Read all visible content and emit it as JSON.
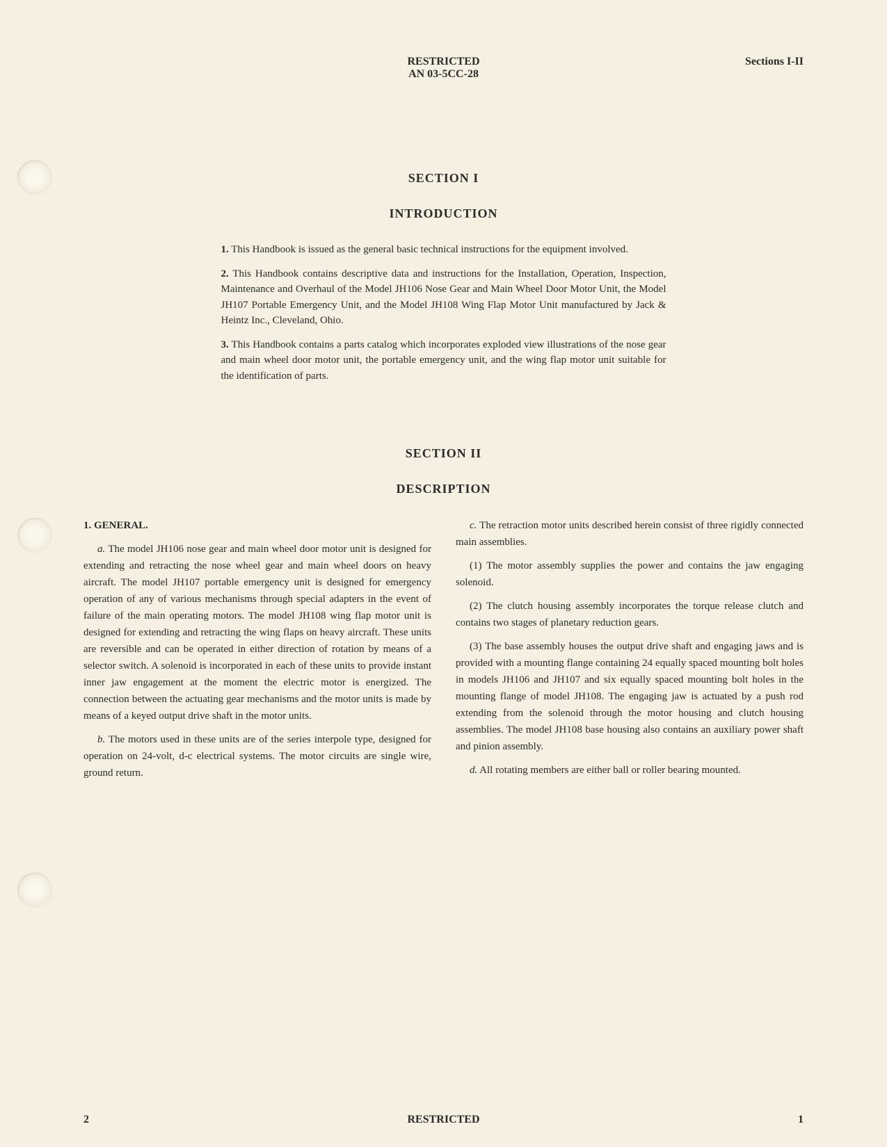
{
  "header": {
    "classification": "RESTRICTED",
    "document_code": "AN 03-5CC-28",
    "sections_label": "Sections I-II"
  },
  "section1": {
    "title": "SECTION I",
    "subtitle": "INTRODUCTION",
    "paragraphs": {
      "p1_num": "1.",
      "p1_text": " This Handbook is issued as the general basic technical instructions for the equipment involved.",
      "p2_num": "2.",
      "p2_text": " This Handbook contains descriptive data and instructions for the Installation, Operation, Inspection, Maintenance and Overhaul of the Model JH106 Nose Gear and Main Wheel Door Motor Unit, the Model JH107 Portable Emergency Unit, and the Model JH108 Wing Flap Motor Unit manufactured by Jack & Heintz Inc., Cleveland, Ohio.",
      "p3_num": "3.",
      "p3_text": " This Handbook contains a parts catalog which incorporates exploded view illustrations of the nose gear and main wheel door motor unit, the portable emergency unit, and the wing flap motor unit suitable for the identification of parts."
    }
  },
  "section2": {
    "title": "SECTION II",
    "subtitle": "DESCRIPTION",
    "heading": "1. GENERAL.",
    "left": {
      "pa_letter": "a.",
      "pa_text": " The model JH106 nose gear and main wheel door motor unit is designed for extending and retracting the nose wheel gear and main wheel doors on heavy aircraft. The model JH107 portable emergency unit is designed for emergency operation of any of various mechanisms through special adapters in the event of failure of the main operating motors. The model JH108 wing flap motor unit is designed for extending and retracting the wing flaps on heavy aircraft. These units are reversible and can be operated in either direction of rotation by means of a selector switch. A solenoid is incorporated in each of these units to provide instant inner jaw engagement at the moment the electric motor is energized. The connection between the actuating gear mechanisms and the motor units is made by means of a keyed output drive shaft in the motor units.",
      "pb_letter": "b.",
      "pb_text": " The motors used in these units are of the series interpole type, designed for operation on 24-volt, d-c electrical systems. The motor circuits are single wire, ground return."
    },
    "right": {
      "pc_letter": "c.",
      "pc_text": " The retraction motor units described herein consist of three rigidly connected main assemblies.",
      "p1_text": "(1) The motor assembly supplies the power and contains the jaw engaging solenoid.",
      "p2_text": "(2) The clutch housing assembly incorporates the torque release clutch and contains two stages of planetary reduction gears.",
      "p3_text": "(3) The base assembly houses the output drive shaft and engaging jaws and is provided with a mounting flange containing 24 equally spaced mounting bolt holes in models JH106 and JH107 and six equally spaced mounting bolt holes in the mounting flange of model JH108. The engaging jaw is actuated by a push rod extending from the solenoid through the motor housing and clutch housing assemblies. The model JH108 base housing also contains an auxiliary power shaft and pinion assembly.",
      "pd_letter": "d.",
      "pd_text": " All rotating members are either ball or roller bearing mounted."
    }
  },
  "footer": {
    "left_num": "2",
    "center": "RESTRICTED",
    "right_num": "1"
  },
  "colors": {
    "background": "#f5f0e1",
    "text": "#2a2a2a"
  }
}
